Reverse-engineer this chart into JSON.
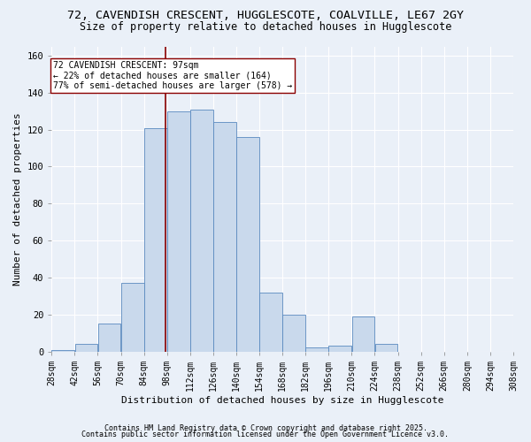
{
  "title_line1": "72, CAVENDISH CRESCENT, HUGGLESCOTE, COALVILLE, LE67 2GY",
  "title_line2": "Size of property relative to detached houses in Hugglescote",
  "xlabel": "Distribution of detached houses by size in Hugglescote",
  "ylabel": "Number of detached properties",
  "bar_edges": [
    28,
    42,
    56,
    70,
    84,
    98,
    112,
    126,
    140,
    154,
    168,
    182,
    196,
    210,
    224,
    238,
    252,
    266,
    280,
    294,
    308
  ],
  "bar_heights": [
    1,
    4,
    15,
    37,
    121,
    130,
    131,
    124,
    116,
    32,
    20,
    2,
    3,
    19,
    4,
    0,
    0,
    0,
    0,
    0
  ],
  "property_size": 97,
  "bar_color": "#c9d9ec",
  "bar_edge_color": "#5a8abf",
  "vline_color": "#8b0000",
  "annotation_line1": "72 CAVENDISH CRESCENT: 97sqm",
  "annotation_line2": "← 22% of detached houses are smaller (164)",
  "annotation_line3": "77% of semi-detached houses are larger (578) →",
  "annotation_box_color": "white",
  "annotation_box_edge_color": "#8b0000",
  "ylim": [
    0,
    165
  ],
  "footnote1": "Contains HM Land Registry data © Crown copyright and database right 2025.",
  "footnote2": "Contains public sector information licensed under the Open Government Licence v3.0.",
  "background_color": "#eaf0f8",
  "grid_color": "white",
  "title1_fontsize": 9.5,
  "title2_fontsize": 8.5,
  "xlabel_fontsize": 8,
  "ylabel_fontsize": 8,
  "tick_fontsize": 7,
  "ytick_fontsize": 7.5,
  "footnote_fontsize": 6,
  "annotation_fontsize": 7
}
